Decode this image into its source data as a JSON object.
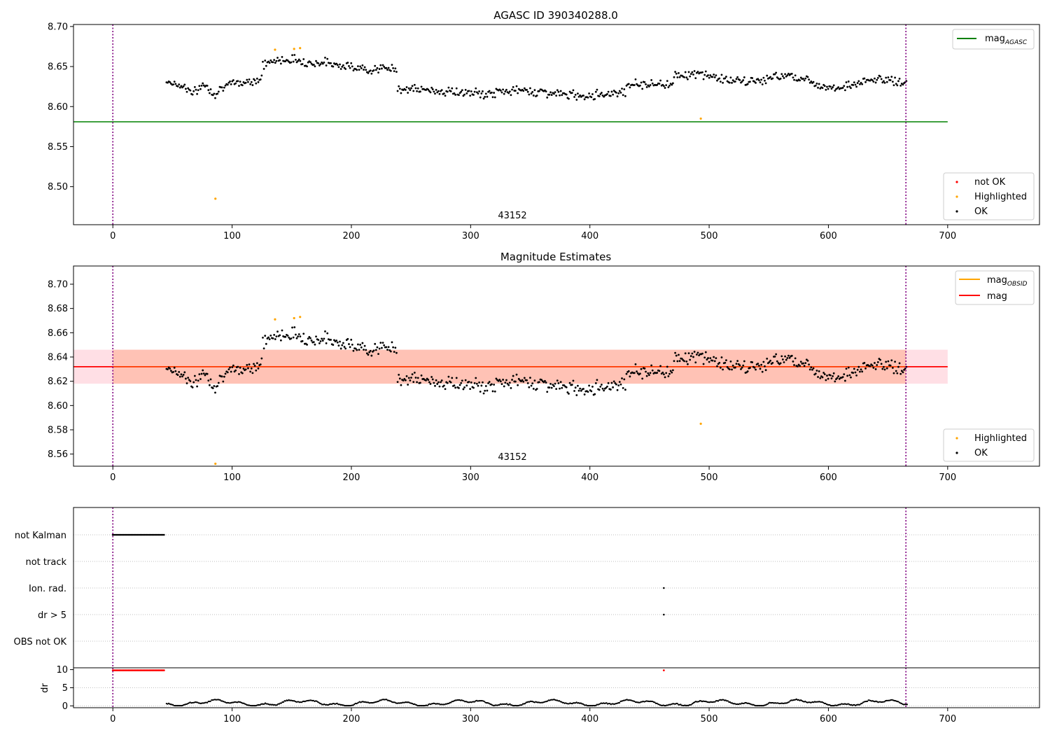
{
  "chart_data": [
    {
      "id": "top",
      "type": "scatter",
      "title": "AGASC ID 390340288.0",
      "xlim": [
        -33,
        777
      ],
      "ylim": [
        8.4525,
        8.7025
      ],
      "xticks": [
        "0",
        "100",
        "200",
        "300",
        "400",
        "500",
        "600",
        "700"
      ],
      "yticks": [
        "8.50",
        "8.55",
        "8.60",
        "8.65",
        "8.70"
      ],
      "annotation": "43152",
      "annotation_x": 334,
      "vlines": [
        0,
        665
      ],
      "hline": {
        "y": 8.581,
        "x0": -33,
        "x1": 700,
        "color": "#008000"
      },
      "legend_upper": [
        {
          "label": "mag",
          "sub": "AGASC",
          "color": "#008000",
          "kind": "line"
        }
      ],
      "legend_lower": [
        {
          "label": "not OK",
          "color": "#ff0000",
          "kind": "dot"
        },
        {
          "label": "Highlighted",
          "color": "#ffa500",
          "kind": "dot"
        },
        {
          "label": "OK",
          "color": "#000000",
          "kind": "dot"
        }
      ],
      "highlighted_points": [
        [
          86,
          8.485
        ],
        [
          136,
          8.671
        ],
        [
          152,
          8.672
        ],
        [
          157,
          8.673
        ],
        [
          493,
          8.585
        ]
      ]
    },
    {
      "id": "mid",
      "type": "scatter",
      "title": "Magnitude Estimates",
      "xlim": [
        -33,
        777
      ],
      "ylim": [
        8.55,
        8.715
      ],
      "xticks": [
        "0",
        "100",
        "200",
        "300",
        "400",
        "500",
        "600",
        "700"
      ],
      "yticks": [
        "8.56",
        "8.58",
        "8.60",
        "8.62",
        "8.64",
        "8.66",
        "8.68",
        "8.70"
      ],
      "annotation": "43152",
      "annotation_x": 334,
      "vlines": [
        0,
        665
      ],
      "band": {
        "y0": 8.618,
        "y1": 8.646,
        "x0": -33,
        "x1": 700,
        "outer_color": "#ffc0cb",
        "inner_color": "#ffa07a",
        "inner_x0": 0,
        "inner_x1": 665
      },
      "hline": {
        "y": 8.632,
        "x0": -33,
        "x1": 700,
        "color": "#ff0000"
      },
      "legend_upper": [
        {
          "label": "mag",
          "sub": "OBSID",
          "color": "#ffa500",
          "kind": "line"
        },
        {
          "label": "mag",
          "sub": "",
          "color": "#ff0000",
          "kind": "line"
        }
      ],
      "legend_lower": [
        {
          "label": "Highlighted",
          "color": "#ffa500",
          "kind": "dot"
        },
        {
          "label": "OK",
          "color": "#000000",
          "kind": "dot"
        }
      ],
      "highlighted_points": [
        [
          86,
          8.552
        ],
        [
          136,
          8.671
        ],
        [
          152,
          8.672
        ],
        [
          157,
          8.673
        ],
        [
          493,
          8.585
        ]
      ]
    },
    {
      "id": "flags",
      "type": "scatter",
      "xlim": [
        -33,
        777
      ],
      "categories": [
        "not Kalman",
        "not track",
        "Ion. rad.",
        "dr > 5",
        "OBS not OK"
      ],
      "vlines": [
        0,
        665
      ],
      "segments": [
        {
          "category": "not Kalman",
          "x0": 0,
          "x1": 44
        }
      ],
      "points": [
        {
          "category": "Ion. rad.",
          "x": 462
        },
        {
          "category": "dr > 5",
          "x": 462
        }
      ]
    },
    {
      "id": "dr",
      "type": "scatter",
      "ylabel": "dr",
      "xlim": [
        -33,
        777
      ],
      "ylim": [
        -0.5,
        10.5
      ],
      "yticks": [
        "0",
        "5",
        "10"
      ],
      "xticks": [
        "0",
        "100",
        "200",
        "300",
        "400",
        "500",
        "600",
        "700"
      ],
      "vlines": [
        0,
        665
      ],
      "red_segment": {
        "x0": 0,
        "x1": 44,
        "y": 9.8
      },
      "red_points": [
        [
          462,
          9.8
        ]
      ]
    }
  ]
}
